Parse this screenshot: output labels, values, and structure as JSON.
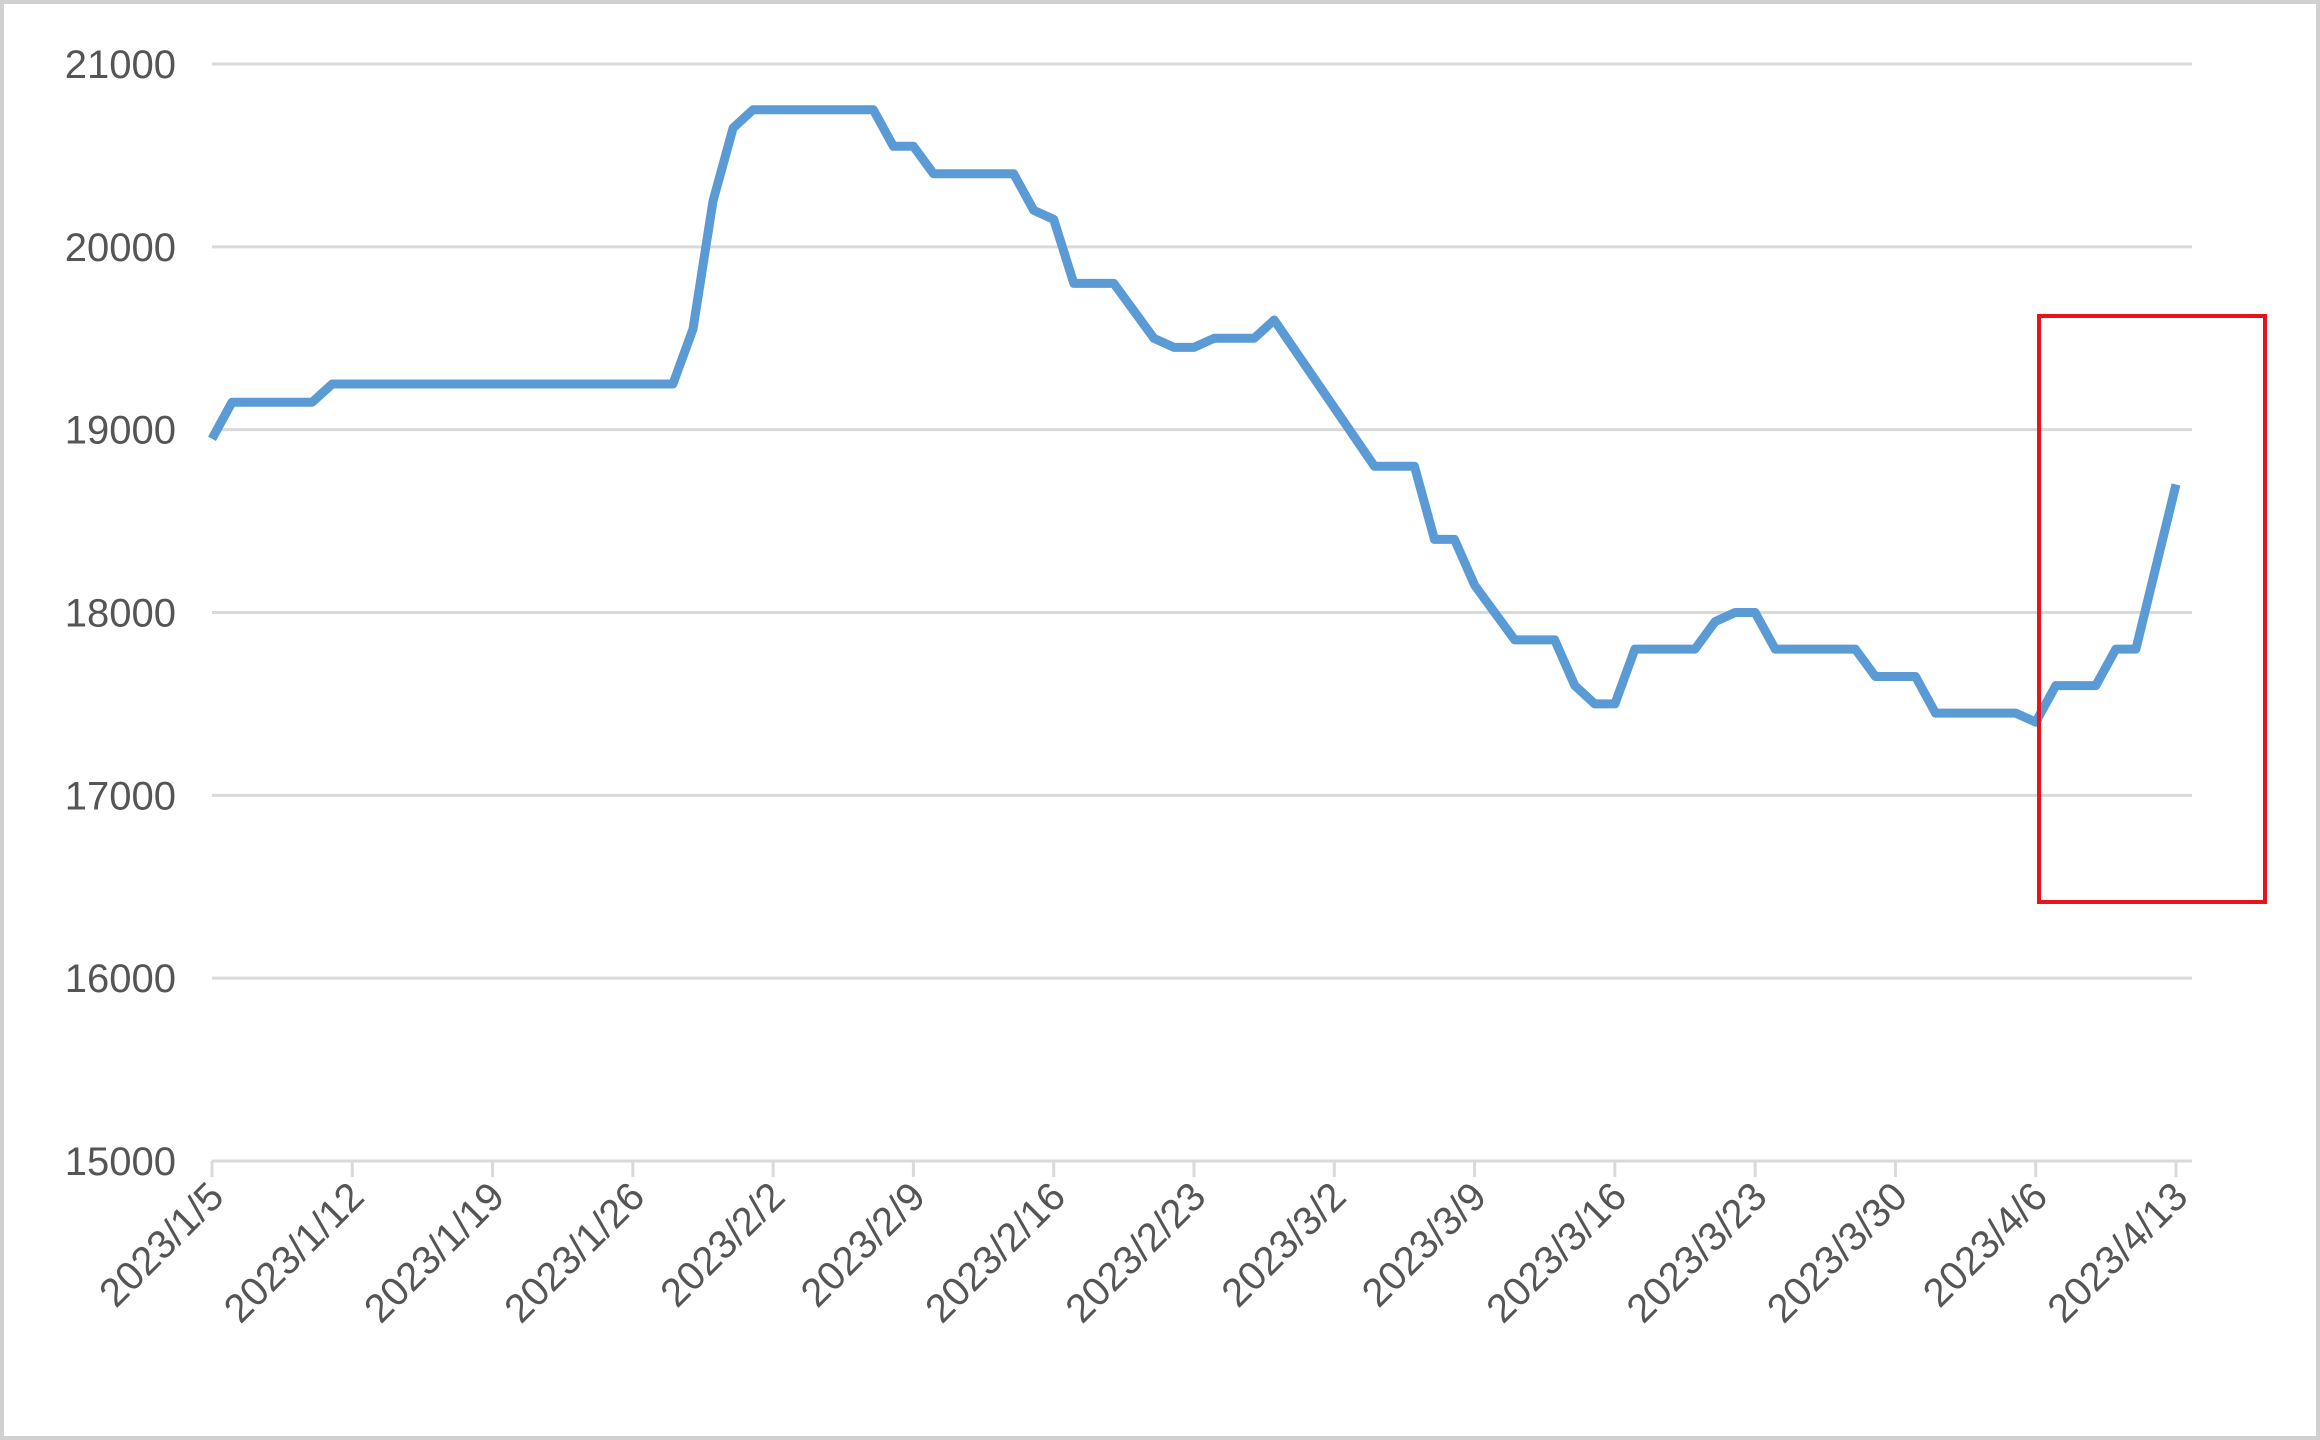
{
  "chart_data": {
    "type": "line",
    "x": [
      "2023/1/5",
      "2023/1/6",
      "2023/1/10",
      "2023/1/11",
      "2023/1/28",
      "2023/1/29",
      "2023/1/30",
      "2023/1/31",
      "2023/2/1",
      "2023/2/7",
      "2023/2/8",
      "2023/2/9",
      "2023/2/10",
      "2023/2/14",
      "2023/2/15",
      "2023/2/16",
      "2023/2/17",
      "2023/2/19",
      "2023/2/21",
      "2023/2/22",
      "2023/2/23",
      "2023/2/24",
      "2023/2/26",
      "2023/2/27",
      "2023/3/4",
      "2023/3/6",
      "2023/3/7",
      "2023/3/8",
      "2023/3/9",
      "2023/3/10",
      "2023/3/11",
      "2023/3/13",
      "2023/3/14",
      "2023/3/15",
      "2023/3/16",
      "2023/3/17",
      "2023/3/20",
      "2023/3/21",
      "2023/3/22",
      "2023/3/23",
      "2023/3/24",
      "2023/3/28",
      "2023/3/29",
      "2023/3/31",
      "2023/4/1",
      "2023/4/5",
      "2023/4/6",
      "2023/4/7",
      "2023/4/9",
      "2023/4/10",
      "2023/4/11",
      "2023/4/13"
    ],
    "series": [
      {
        "color": "#5b9bd5",
        "values": [
          18950,
          19150,
          19150,
          19250,
          19250,
          19550,
          20250,
          20650,
          20750,
          20750,
          20550,
          20550,
          20400,
          20400,
          20200,
          20150,
          19800,
          19800,
          19500,
          19450,
          19450,
          19500,
          19500,
          19600,
          18800,
          18800,
          18400,
          18400,
          18150,
          18000,
          17850,
          17850,
          17600,
          17500,
          17500,
          17800,
          17800,
          17950,
          18000,
          18000,
          17800,
          17800,
          17650,
          17650,
          17450,
          17450,
          17400,
          17600,
          17600,
          17800,
          17800,
          18700
        ]
      }
    ],
    "xlim": [
      "2023/1/5",
      "2023/4/13"
    ],
    "xticks": [
      "2023/1/5",
      "2023/1/12",
      "2023/1/19",
      "2023/1/26",
      "2023/2/2",
      "2023/2/9",
      "2023/2/16",
      "2023/2/23",
      "2023/3/2",
      "2023/3/9",
      "2023/3/16",
      "2023/3/23",
      "2023/3/30",
      "2023/4/6",
      "2023/4/13"
    ],
    "ylim": [
      15000,
      21000
    ],
    "yticks": [
      15000,
      16000,
      17000,
      18000,
      19000,
      20000,
      21000
    ],
    "grid": true
  }
}
